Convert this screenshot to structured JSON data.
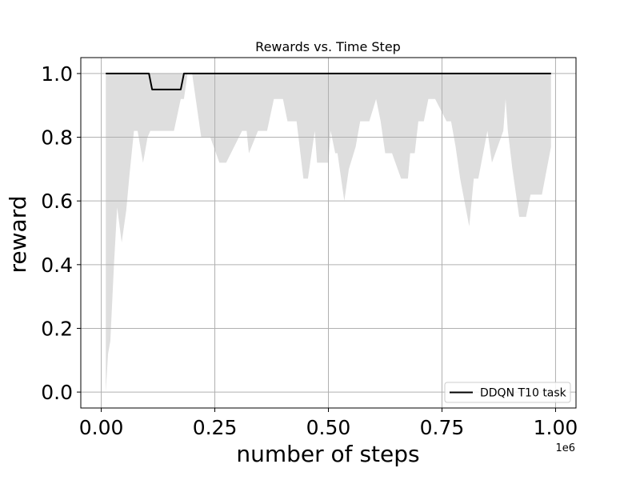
{
  "chart_data": {
    "type": "line",
    "title": "Rewards vs. Time Step",
    "xlabel": "number of steps",
    "ylabel": "reward",
    "x_offset_label": "1e6",
    "xlim": [
      -0.045,
      1.045
    ],
    "ylim": [
      -0.05,
      1.05
    ],
    "xticks": [
      0.0,
      0.25,
      0.5,
      0.75,
      1.0
    ],
    "xtick_labels": [
      "0.00",
      "0.25",
      "0.50",
      "0.75",
      "1.00"
    ],
    "yticks": [
      0.0,
      0.2,
      0.4,
      0.6,
      0.8,
      1.0
    ],
    "ytick_labels": [
      "0.0",
      "0.2",
      "0.4",
      "0.6",
      "0.8",
      "1.0"
    ],
    "grid": true,
    "legend_position": "lower-right",
    "series": [
      {
        "name": "DDQN T10 task",
        "color": "#000000",
        "x": [
          0.01,
          0.105,
          0.112,
          0.175,
          0.182,
          0.99
        ],
        "y": [
          1.0,
          1.0,
          0.95,
          0.95,
          1.0,
          1.0
        ]
      }
    ],
    "band": {
      "color": "#dedede",
      "x": [
        0.01,
        0.015,
        0.02,
        0.028,
        0.035,
        0.045,
        0.055,
        0.062,
        0.072,
        0.08,
        0.092,
        0.102,
        0.108,
        0.115,
        0.125,
        0.14,
        0.16,
        0.175,
        0.182,
        0.19,
        0.2,
        0.22,
        0.24,
        0.26,
        0.275,
        0.31,
        0.32,
        0.325,
        0.345,
        0.365,
        0.38,
        0.385,
        0.4,
        0.41,
        0.42,
        0.43,
        0.445,
        0.455,
        0.47,
        0.475,
        0.5,
        0.505,
        0.515,
        0.52,
        0.535,
        0.545,
        0.56,
        0.57,
        0.59,
        0.605,
        0.615,
        0.625,
        0.64,
        0.66,
        0.675,
        0.68,
        0.69,
        0.698,
        0.71,
        0.72,
        0.735,
        0.76,
        0.77,
        0.78,
        0.79,
        0.81,
        0.82,
        0.83,
        0.85,
        0.86,
        0.885,
        0.89,
        0.895,
        0.905,
        0.92,
        0.935,
        0.945,
        0.97,
        0.99
      ],
      "upper": [
        1.0,
        1.0,
        1.0,
        1.0,
        1.0,
        1.0,
        1.0,
        1.0,
        1.0,
        1.0,
        1.0,
        1.0,
        1.0,
        1.0,
        1.0,
        1.0,
        1.0,
        1.0,
        1.0,
        1.0,
        1.0,
        1.0,
        1.0,
        1.0,
        1.0,
        1.0,
        1.0,
        1.0,
        1.0,
        1.0,
        1.0,
        1.0,
        1.0,
        1.0,
        1.0,
        1.0,
        1.0,
        1.0,
        1.0,
        1.0,
        1.0,
        1.0,
        1.0,
        1.0,
        1.0,
        1.0,
        1.0,
        1.0,
        1.0,
        1.0,
        1.0,
        1.0,
        1.0,
        1.0,
        1.0,
        1.0,
        1.0,
        1.0,
        1.0,
        1.0,
        1.0,
        1.0,
        1.0,
        1.0,
        1.0,
        1.0,
        1.0,
        1.0,
        1.0,
        1.0,
        1.0,
        1.0,
        1.0,
        1.0,
        1.0,
        1.0,
        1.0,
        1.0,
        1.0
      ],
      "lower": [
        0.0,
        0.12,
        0.16,
        0.4,
        0.58,
        0.47,
        0.57,
        0.68,
        0.82,
        0.82,
        0.72,
        0.8,
        0.82,
        0.82,
        0.82,
        0.82,
        0.82,
        0.92,
        0.92,
        1.0,
        1.0,
        0.8,
        0.8,
        0.72,
        0.72,
        0.82,
        0.82,
        0.75,
        0.82,
        0.82,
        0.92,
        0.92,
        0.92,
        0.85,
        0.85,
        0.85,
        0.67,
        0.67,
        0.82,
        0.72,
        0.72,
        0.82,
        0.75,
        0.75,
        0.6,
        0.7,
        0.77,
        0.85,
        0.85,
        0.92,
        0.85,
        0.75,
        0.75,
        0.67,
        0.67,
        0.75,
        0.75,
        0.85,
        0.85,
        0.92,
        0.92,
        0.85,
        0.85,
        0.77,
        0.67,
        0.52,
        0.67,
        0.67,
        0.82,
        0.72,
        0.82,
        0.92,
        0.82,
        0.7,
        0.55,
        0.55,
        0.62,
        0.62,
        0.77
      ]
    }
  }
}
